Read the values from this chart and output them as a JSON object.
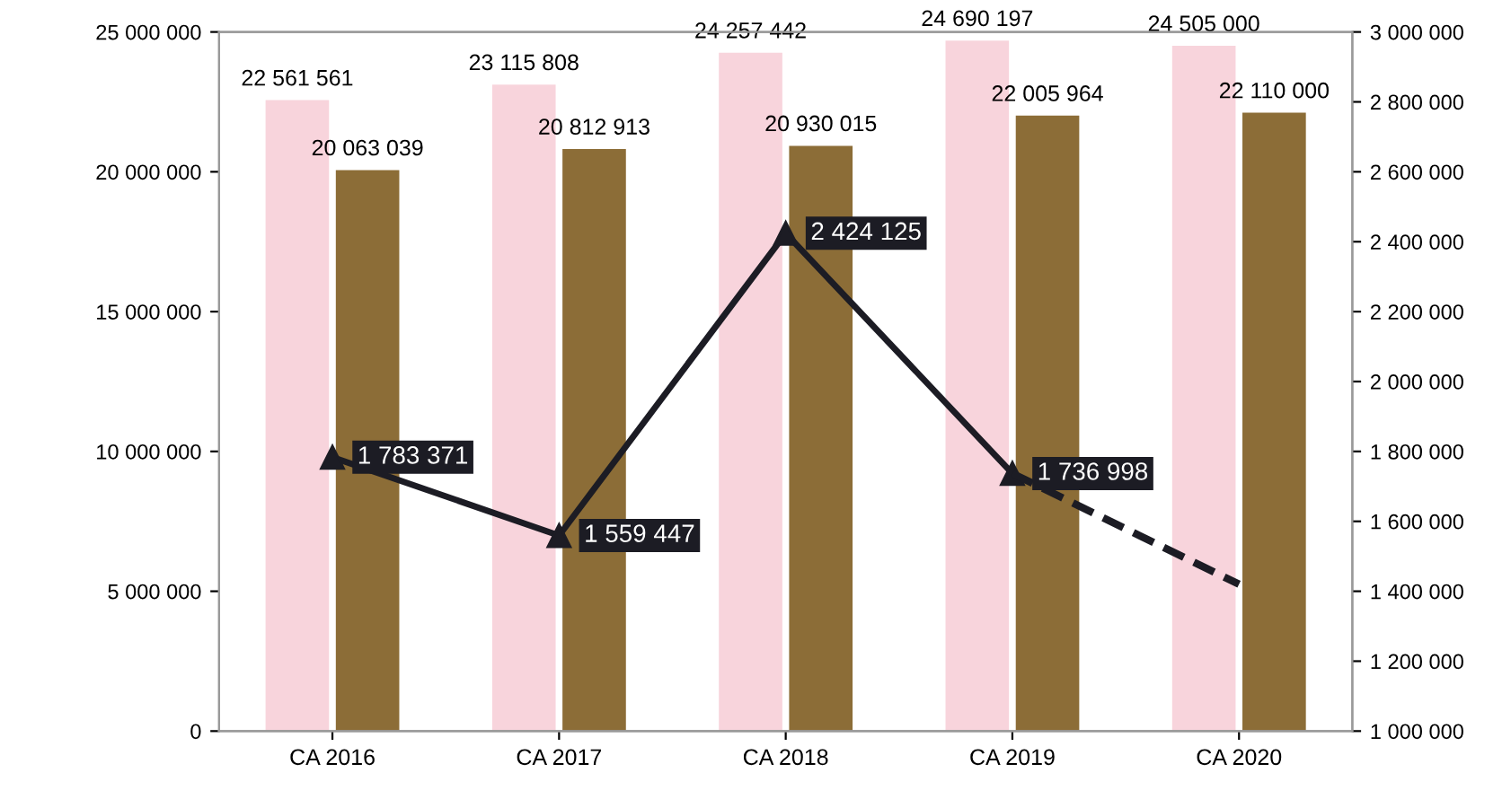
{
  "chart_data": {
    "type": "bar",
    "categories": [
      "CA 2016",
      "CA 2017",
      "CA 2018",
      "CA 2019",
      "CA 2020"
    ],
    "series": [
      {
        "color": "#f8d4dc",
        "values": [
          22561561,
          23115808,
          24257442,
          24690197,
          24505000
        ],
        "value_labels": [
          "22 561 561",
          "23 115 808",
          "24 257 442",
          "24 690 197",
          "24 505 000"
        ]
      },
      {
        "color": "#8c6d37",
        "values": [
          20063039,
          20812913,
          20930015,
          22005964,
          22110000
        ],
        "value_labels": [
          "20 063 039",
          "20 812 913",
          "20 930 015",
          "22 005 964",
          "22 110 000"
        ]
      },
      {
        "type": "line",
        "axis": "y2",
        "color": "#1c1c24",
        "marker": "triangle",
        "line_style": "solid",
        "values": [
          1783371,
          1559447,
          2424125,
          1736998,
          null
        ],
        "value_labels": [
          "1 783 371",
          "1 559 447",
          "2 424 125",
          "1 736 998",
          null
        ]
      },
      {
        "type": "line",
        "axis": "y2",
        "color": "#1c1c24",
        "marker": "none",
        "line_style": "dashed",
        "values": [
          null,
          null,
          null,
          1736998,
          1420000
        ]
      }
    ],
    "ylim": [
      0,
      25000000
    ],
    "yticks": [
      {
        "value": 0,
        "label": "0"
      },
      {
        "value": 5000000,
        "label": "5 000 000"
      },
      {
        "value": 10000000,
        "label": "10 000 000"
      },
      {
        "value": 15000000,
        "label": "15 000 000"
      },
      {
        "value": 20000000,
        "label": "20 000 000"
      },
      {
        "value": 25000000,
        "label": "25 000 000"
      }
    ],
    "y2lim": [
      1000000,
      3000000
    ],
    "y2ticks": [
      {
        "value": 1000000,
        "label": "1 000 000"
      },
      {
        "value": 1200000,
        "label": "1 200 000"
      },
      {
        "value": 1400000,
        "label": "1 400 000"
      },
      {
        "value": 1600000,
        "label": "1 600 000"
      },
      {
        "value": 1800000,
        "label": "1 800 000"
      },
      {
        "value": 2000000,
        "label": "2 000 000"
      },
      {
        "value": 2200000,
        "label": "2 200 000"
      },
      {
        "value": 2400000,
        "label": "2 400 000"
      },
      {
        "value": 2600000,
        "label": "2 600 000"
      },
      {
        "value": 2800000,
        "label": "2 800 000"
      },
      {
        "value": 3000000,
        "label": "3 000 000"
      }
    ],
    "grid": false,
    "legend": false
  }
}
